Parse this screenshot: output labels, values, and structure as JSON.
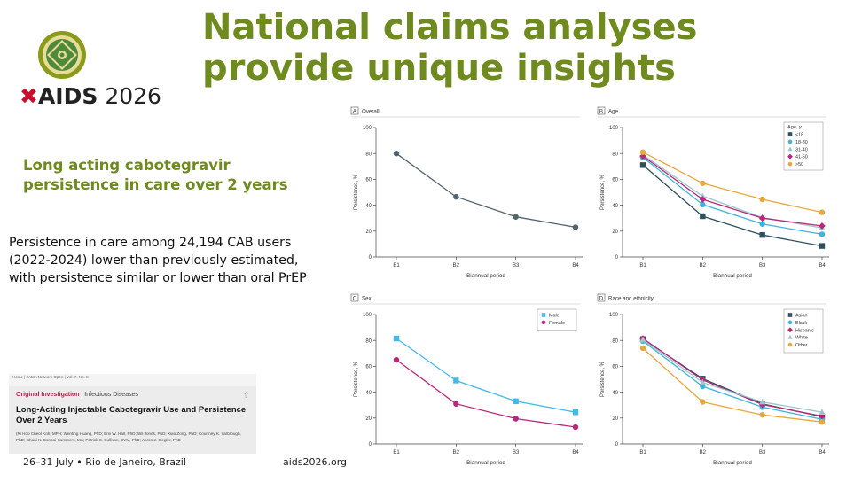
{
  "slide": {
    "title_line1": "National claims analyses",
    "title_line2": "provide unique insights",
    "logo_text": "AIDS",
    "logo_year": "2026",
    "subtitle_line1": "Long acting cabotegravir",
    "subtitle_line2": "persistence in care over 2 years",
    "body_line1": "Persistence in care among 24,194 CAB users",
    "body_line2": "(2022-2024) lower than previously estimated,",
    "body_line3": "with persistence similar or lower than oral PrEP",
    "footer_left": "26–31 July  •  Rio de Janeiro, Brazil",
    "footer_right": "aids2026.org",
    "colors": {
      "title_green": "#6f8a1f",
      "ribbon_red": "#c8102e"
    }
  },
  "paper": {
    "header_line": "Home | JAMA Network Open | Vol. 7, No. 8",
    "category": "Original Investigation",
    "subcategory": "| Infectious Diseases",
    "title": "Long-Acting Injectable Cabotegravir Use and Persistence Over 2 Years",
    "authors": "(Ri Hoo Cheol Koh, MPH; Wenting Huang, PhD; Emi W. Hall, PhD; Wil Jones, PhD; Xiao Zong, PhD; Courtney K. Yarbrough, PhD; Ishani K. Conboi-Summers, MA; Patrick S. Sullivan, DVM, PhD; Aaron J. Siegler, PhD"
  },
  "chart_data": [
    {
      "panel": "A",
      "title": "Overall",
      "type": "line",
      "categories": [
        "B1",
        "B2",
        "B3",
        "B4"
      ],
      "xlabel": "Biannual period",
      "ylabel": "Persistence, %",
      "ylim": [
        0,
        100
      ],
      "yticks": [
        0,
        20,
        40,
        60,
        80,
        100
      ],
      "grid": false,
      "legend": null,
      "series": [
        {
          "values": [
            80,
            46.5,
            31,
            23
          ],
          "color": "#51636e",
          "marker": "circle"
        }
      ]
    },
    {
      "panel": "B",
      "title": "Age",
      "type": "line",
      "categories": [
        "B1",
        "B2",
        "B3",
        "B4"
      ],
      "xlabel": "Biannual period",
      "ylabel": "Persistence, %",
      "ylim": [
        0,
        100
      ],
      "yticks": [
        0,
        20,
        40,
        60,
        80,
        100
      ],
      "grid": false,
      "legend": {
        "title": "Age, y",
        "placement": "top-right"
      },
      "series": [
        {
          "name": "<18",
          "values": [
            71,
            31.5,
            17,
            8.5
          ],
          "color": "#2f4f5f",
          "marker": "square"
        },
        {
          "name": "18-30",
          "values": [
            77,
            40.5,
            25.5,
            17.5
          ],
          "color": "#3fb3df",
          "marker": "circle"
        },
        {
          "name": "31-40",
          "values": [
            79,
            47,
            30.5,
            22.5
          ],
          "color": "#9ec6c9",
          "marker": "triangle"
        },
        {
          "name": "41-50",
          "values": [
            78,
            44.5,
            30,
            24
          ],
          "color": "#b8287a",
          "marker": "diamond"
        },
        {
          "name": ">50",
          "values": [
            81,
            57,
            44.5,
            34.5
          ],
          "color": "#e8a640",
          "marker": "circle"
        }
      ]
    },
    {
      "panel": "C",
      "title": "Sex",
      "type": "line",
      "categories": [
        "B1",
        "B2",
        "B3",
        "B4"
      ],
      "xlabel": "Biannual period",
      "ylabel": "Persistence, %",
      "ylim": [
        0,
        100
      ],
      "yticks": [
        0,
        20,
        40,
        60,
        80,
        100
      ],
      "grid": false,
      "legend": {
        "title": "",
        "placement": "top-right"
      },
      "series": [
        {
          "name": "Male",
          "values": [
            81.5,
            49,
            33,
            24.5
          ],
          "color": "#44b9e6",
          "marker": "square"
        },
        {
          "name": "Female",
          "values": [
            65,
            31,
            19.5,
            13
          ],
          "color": "#b8287a",
          "marker": "circle"
        }
      ]
    },
    {
      "panel": "D",
      "title": "Race and ethnicity",
      "type": "line",
      "categories": [
        "B1",
        "B2",
        "B3",
        "B4"
      ],
      "xlabel": "Biannual period",
      "ylabel": "Persistence, %",
      "ylim": [
        0,
        100
      ],
      "yticks": [
        0,
        20,
        40,
        60,
        80,
        100
      ],
      "grid": false,
      "legend": {
        "title": "",
        "placement": "top-right"
      },
      "series": [
        {
          "name": "Asian",
          "values": [
            81,
            50.5,
            31,
            21
          ],
          "color": "#2f4f5f",
          "marker": "square"
        },
        {
          "name": "Black",
          "values": [
            79.5,
            44.5,
            28.5,
            19
          ],
          "color": "#3fb3df",
          "marker": "circle"
        },
        {
          "name": "Hispanic",
          "values": [
            81.5,
            49.5,
            30.5,
            21.5
          ],
          "color": "#b8287a",
          "marker": "diamond"
        },
        {
          "name": "White",
          "values": [
            80.5,
            47.5,
            32.5,
            24.5
          ],
          "color": "#9ec6c9",
          "marker": "triangle"
        },
        {
          "name": "Other",
          "values": [
            74,
            32.5,
            22.5,
            17
          ],
          "color": "#e8a640",
          "marker": "circle"
        }
      ]
    }
  ]
}
